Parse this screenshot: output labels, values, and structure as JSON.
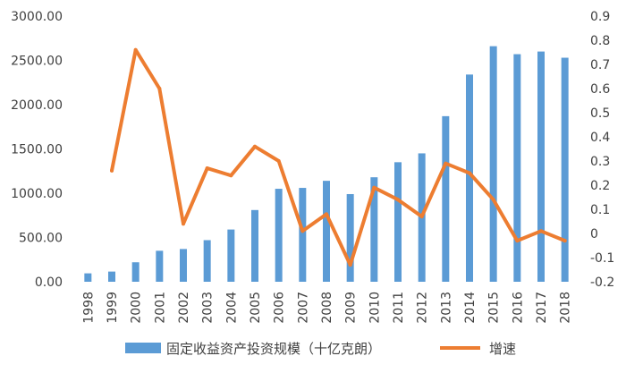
{
  "chart_data": {
    "type": "bar+line",
    "categories": [
      "1998",
      "1999",
      "2000",
      "2001",
      "2002",
      "2003",
      "2004",
      "2005",
      "2006",
      "2007",
      "2008",
      "2009",
      "2010",
      "2011",
      "2012",
      "2013",
      "2014",
      "2015",
      "2016",
      "2017",
      "2018"
    ],
    "series": [
      {
        "name": "固定收益资产投资规模（十亿克朗）",
        "type": "bar",
        "axis": "left",
        "color": "#5B9BD5",
        "values": [
          95,
          115,
          220,
          350,
          370,
          470,
          590,
          810,
          1050,
          1060,
          1140,
          990,
          1180,
          1350,
          1450,
          1870,
          2340,
          2660,
          2570,
          2600,
          2530
        ]
      },
      {
        "name": "增速",
        "type": "line",
        "axis": "right",
        "color": "#ED7D31",
        "values": [
          null,
          0.26,
          0.76,
          0.6,
          0.04,
          0.27,
          0.24,
          0.36,
          0.3,
          0.01,
          0.08,
          -0.13,
          0.19,
          0.14,
          0.07,
          0.29,
          0.25,
          0.14,
          -0.03,
          0.01,
          -0.03
        ]
      }
    ],
    "left_axis": {
      "min": 0,
      "max": 3000,
      "step": 500,
      "tick_labels": [
        "0.00",
        "500.00",
        "1000.00",
        "1500.00",
        "2000.00",
        "2500.00",
        "3000.00"
      ]
    },
    "right_axis": {
      "min": -0.2,
      "max": 0.9,
      "step": 0.1,
      "tick_labels": [
        "-0.2",
        "-0.1",
        "0",
        "0.1",
        "0.2",
        "0.3",
        "0.4",
        "0.5",
        "0.6",
        "0.7",
        "0.8",
        "0.9"
      ]
    },
    "title": "",
    "legend": {
      "position": "bottom",
      "items": [
        "固定收益资产投资规模（十亿克朗）",
        "增速"
      ]
    }
  }
}
